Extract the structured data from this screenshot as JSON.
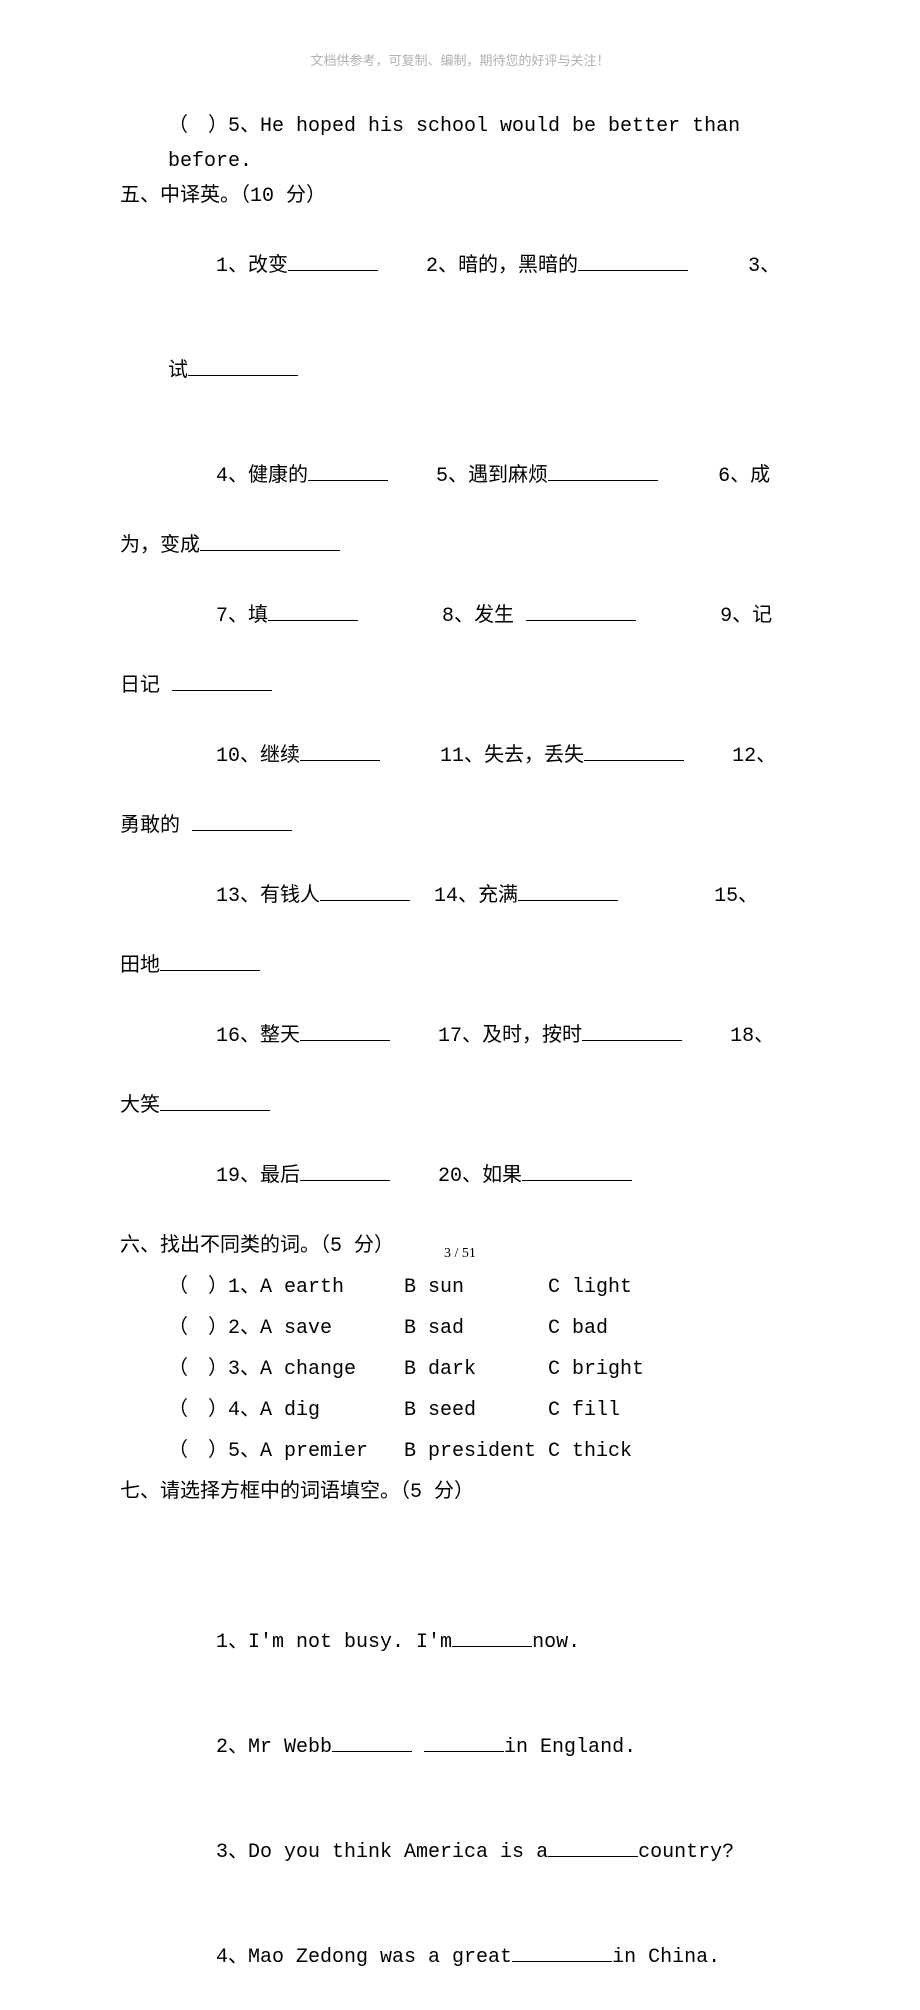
{
  "header_note": "文档供参考，可复制、编制，期待您的好评与关注！",
  "q5_line": "（ ）5、He hoped his school would be better than before.",
  "sec5": {
    "title": "五、中译英。（10 分）",
    "items": [
      {
        "n": "1、",
        "t": "改变",
        "bw": "w90"
      },
      {
        "n": "2、",
        "t": "暗的，黑暗的",
        "bw": "w110"
      },
      {
        "n": "3、",
        "t": "试",
        "bw": "w110"
      },
      {
        "n": "4、",
        "t": "健康的",
        "bw": "w80"
      },
      {
        "n": "5、",
        "t": "遇到麻烦",
        "bw": "w110"
      },
      {
        "n": "6、",
        "t": "成为，变成",
        "bw": "w140"
      },
      {
        "n": "7、",
        "t": "填",
        "bw": "w90"
      },
      {
        "n": "8、",
        "t": "发生",
        "bw": "w110"
      },
      {
        "n": "9、",
        "t": "记日记",
        "bw": "w100"
      },
      {
        "n": "10、",
        "t": "继续",
        "bw": "w80"
      },
      {
        "n": "11、",
        "t": "失去，丢失",
        "bw": "w100"
      },
      {
        "n": "12、",
        "t": "勇敢的",
        "bw": "w100"
      },
      {
        "n": "13、",
        "t": "有钱人",
        "bw": "w90"
      },
      {
        "n": "14、",
        "t": "充满",
        "bw": "w100"
      },
      {
        "n": "15、",
        "t": "田地",
        "bw": "w100"
      },
      {
        "n": "16、",
        "t": "整天",
        "bw": "w90"
      },
      {
        "n": "17、",
        "t": "及时，按时",
        "bw": "w100"
      },
      {
        "n": "18、",
        "t": "大笑",
        "bw": "w110"
      },
      {
        "n": "19、",
        "t": "最后",
        "bw": "w90"
      },
      {
        "n": "20、",
        "t": "如果",
        "bw": "w110"
      }
    ]
  },
  "sec6": {
    "title": "六、找出不同类的词。（5 分）",
    "rows": [
      {
        "n": "1",
        "a": "A earth",
        "b": "B sun",
        "c": "C light"
      },
      {
        "n": "2",
        "a": "A save",
        "b": "B sad",
        "c": "C bad"
      },
      {
        "n": "3",
        "a": "A change",
        "b": "B dark",
        "c": "C bright"
      },
      {
        "n": "4",
        "a": "A dig",
        "b": "B seed",
        "c": "C fill"
      },
      {
        "n": "5",
        "a": "A premier",
        "b": "B president",
        "c": "C thick"
      }
    ]
  },
  "sec7": {
    "title": "七、请选择方框中的词语填空。（5 分）",
    "items": [
      {
        "pre": "1、I'm not busy. I'm",
        "post": "now.",
        "bw": "w80"
      },
      {
        "pre": "2、Mr Webb",
        "mid": "",
        "post": "in England.",
        "bw": "w80",
        "bw2": "w80"
      },
      {
        "pre": "3、Do you think America is a",
        "post": "country?",
        "bw": "w90"
      },
      {
        "pre": "4、Mao Zedong was a great",
        "post": "in China.",
        "bw": "w100"
      }
    ]
  },
  "footer": "3 / 51"
}
